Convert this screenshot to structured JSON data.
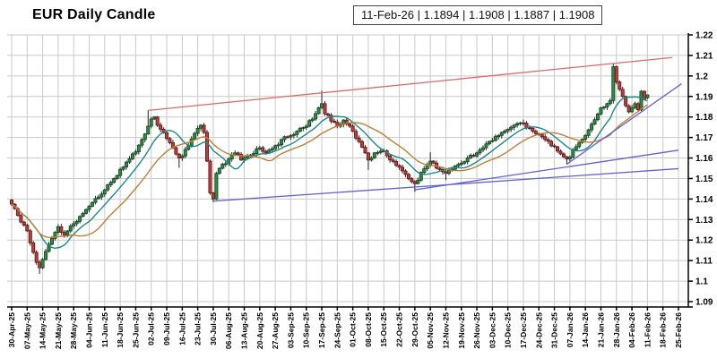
{
  "header": {
    "title": "EUR Daily Candle",
    "info_box": "11-Feb-26 | 1.1894 | 1.1908 | 1.1887 | 1.1908"
  },
  "chart_data": {
    "type": "candlestick",
    "title": "EUR Daily Candle",
    "instrument": "EUR",
    "frequency": "daily",
    "ylim": [
      1.09,
      1.22
    ],
    "grid": true,
    "y_tick_labels": [
      "1.22",
      "1.21",
      "1.2",
      "1.19",
      "1.18",
      "1.17",
      "1.16",
      "1.15",
      "1.14",
      "1.13",
      "1.12",
      "1.11",
      "1.1",
      "1.09"
    ],
    "x_labels": [
      "30-Apr-25",
      "07-May-25",
      "14-May-25",
      "21-May-25",
      "28-May-25",
      "04-Jun-25",
      "11-Jun-25",
      "18-Jun-25",
      "25-Jun-25",
      "02-Jul-25",
      "09-Jul-25",
      "16-Jul-25",
      "23-Jul-25",
      "30-Jul-25",
      "06-Aug-25",
      "13-Aug-25",
      "20-Aug-25",
      "27-Aug-25",
      "03-Sep-25",
      "10-Sep-25",
      "17-Sep-25",
      "24-Sep-25",
      "01-Oct-25",
      "08-Oct-25",
      "15-Oct-25",
      "22-Oct-25",
      "29-Oct-25",
      "05-Nov-25",
      "12-Nov-25",
      "19-Nov-25",
      "26-Nov-25",
      "03-Dec-25",
      "10-Dec-25",
      "17-Dec-25",
      "24-Dec-25",
      "31-Dec-25",
      "07-Jan-26",
      "14-Jan-26",
      "21-Jan-26",
      "28-Jan-26",
      "04-Feb-26",
      "11-Feb-26",
      "18-Feb-26",
      "25-Feb-26"
    ],
    "candles_per_week": 5,
    "num_candles": 206,
    "first_date": "30-Apr-25",
    "last_date": "11-Feb-26",
    "last_candle": {
      "date": "11-Feb-26",
      "open": 1.1894,
      "high": 1.1908,
      "low": 1.1887,
      "close": 1.1908
    },
    "close_anchors": [
      [
        0,
        1.1375
      ],
      [
        2,
        1.132
      ],
      [
        5,
        1.1245
      ],
      [
        7,
        1.114
      ],
      [
        9,
        1.1065
      ],
      [
        12,
        1.118
      ],
      [
        15,
        1.1265
      ],
      [
        17,
        1.1225
      ],
      [
        20,
        1.128
      ],
      [
        23,
        1.133
      ],
      [
        25,
        1.1365
      ],
      [
        28,
        1.141
      ],
      [
        30,
        1.1445
      ],
      [
        33,
        1.15
      ],
      [
        35,
        1.1545
      ],
      [
        37,
        1.158
      ],
      [
        40,
        1.163
      ],
      [
        42,
        1.169
      ],
      [
        44,
        1.1755
      ],
      [
        45,
        1.179
      ],
      [
        46,
        1.18
      ],
      [
        47,
        1.176
      ],
      [
        50,
        1.1695
      ],
      [
        52,
        1.165
      ],
      [
        54,
        1.16
      ],
      [
        55,
        1.161
      ],
      [
        57,
        1.166
      ],
      [
        59,
        1.172
      ],
      [
        60,
        1.1745
      ],
      [
        61,
        1.176
      ],
      [
        62,
        1.1725
      ],
      [
        63,
        1.1585
      ],
      [
        64,
        1.143
      ],
      [
        65,
        1.14
      ],
      [
        66,
        1.1525
      ],
      [
        68,
        1.157
      ],
      [
        70,
        1.1595
      ],
      [
        72,
        1.1625
      ],
      [
        74,
        1.159
      ],
      [
        77,
        1.1615
      ],
      [
        80,
        1.165
      ],
      [
        82,
        1.1625
      ],
      [
        85,
        1.166
      ],
      [
        87,
        1.169
      ],
      [
        90,
        1.171
      ],
      [
        92,
        1.173
      ],
      [
        95,
        1.1755
      ],
      [
        97,
        1.179
      ],
      [
        99,
        1.1845
      ],
      [
        100,
        1.1865
      ],
      [
        101,
        1.1815
      ],
      [
        103,
        1.178
      ],
      [
        105,
        1.1755
      ],
      [
        107,
        1.1785
      ],
      [
        110,
        1.173
      ],
      [
        112,
        1.168
      ],
      [
        115,
        1.159
      ],
      [
        117,
        1.1625
      ],
      [
        120,
        1.1635
      ],
      [
        122,
        1.159
      ],
      [
        125,
        1.1555
      ],
      [
        127,
        1.152
      ],
      [
        129,
        1.1485
      ],
      [
        130,
        1.1475
      ],
      [
        132,
        1.153
      ],
      [
        135,
        1.1585
      ],
      [
        137,
        1.155
      ],
      [
        140,
        1.1525
      ],
      [
        142,
        1.1545
      ],
      [
        145,
        1.1575
      ],
      [
        147,
        1.16
      ],
      [
        150,
        1.1625
      ],
      [
        152,
        1.165
      ],
      [
        155,
        1.1685
      ],
      [
        157,
        1.171
      ],
      [
        160,
        1.174
      ],
      [
        162,
        1.176
      ],
      [
        165,
        1.177
      ],
      [
        167,
        1.1745
      ],
      [
        170,
        1.1715
      ],
      [
        172,
        1.169
      ],
      [
        175,
        1.1655
      ],
      [
        177,
        1.162
      ],
      [
        179,
        1.1595
      ],
      [
        180,
        1.1605
      ],
      [
        182,
        1.1655
      ],
      [
        185,
        1.171
      ],
      [
        187,
        1.1765
      ],
      [
        189,
        1.1815
      ],
      [
        190,
        1.1845
      ],
      [
        192,
        1.1865
      ],
      [
        193,
        1.188
      ],
      [
        194,
        1.2045
      ],
      [
        195,
        1.197
      ],
      [
        196,
        1.1935
      ],
      [
        197,
        1.19
      ],
      [
        198,
        1.1855
      ],
      [
        199,
        1.1825
      ],
      [
        200,
        1.1845
      ],
      [
        201,
        1.1865
      ],
      [
        202,
        1.1835
      ],
      [
        203,
        1.1925
      ],
      [
        204,
        1.1885
      ],
      [
        205,
        1.1908
      ]
    ],
    "wick_overrides": {
      "9": {
        "l": 1.1035
      },
      "44": {
        "h": 1.1832
      },
      "54": {
        "l": 1.1552
      },
      "65": {
        "l": 1.1385
      },
      "100": {
        "h": 1.1928
      },
      "115": {
        "l": 1.1542
      },
      "130": {
        "l": 1.1435
      },
      "135": {
        "h": 1.1628
      },
      "140": {
        "l": 1.1492
      },
      "165": {
        "h": 1.1788
      },
      "179": {
        "l": 1.1568
      },
      "194": {
        "h": 1.2058
      }
    },
    "exact_overrides": {
      "205": {
        "o": 1.1894,
        "h": 1.1908,
        "l": 1.1887,
        "c": 1.1908
      }
    },
    "moving_averages": [
      {
        "name": "ma-short",
        "period": 10,
        "color": "#1b8a82"
      },
      {
        "name": "ma-long",
        "period": 21,
        "color": "#c07f35"
      }
    ],
    "trendlines": [
      {
        "name": "resistance-red",
        "i1": 44,
        "p1": 1.1832,
        "i2": 213,
        "p2": 1.209,
        "color": "#dd6a6a"
      },
      {
        "name": "support-long",
        "i1": 65,
        "p1": 1.139,
        "i2": 215,
        "p2": 1.1548,
        "color": "#6161d6"
      },
      {
        "name": "support-mid",
        "i1": 130,
        "p1": 1.1445,
        "i2": 215,
        "p2": 1.1638,
        "color": "#6161d6"
      },
      {
        "name": "support-steep",
        "i1": 179,
        "p1": 1.157,
        "i2": 216,
        "p2": 1.1962,
        "color": "#6161d6"
      }
    ],
    "colors": {
      "up_fill": "#2e8b44",
      "up_stroke": "#14401f",
      "down_fill": "#c23b3b",
      "down_stroke": "#591414",
      "wick": "#222222",
      "grid": "#c9c9c9",
      "axis": "#000000",
      "background": "#ffffff"
    }
  }
}
